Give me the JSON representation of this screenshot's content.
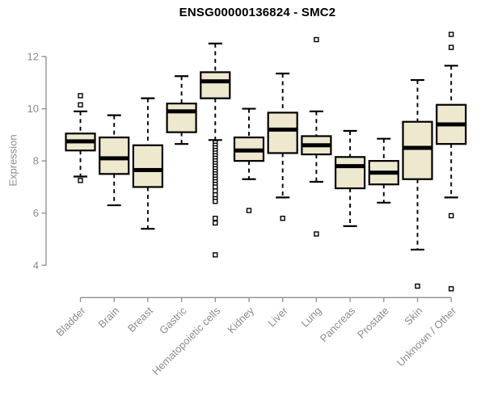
{
  "chart_data": {
    "type": "boxplot",
    "title": "ENSG00000136824 - SMC2",
    "ylabel": "Expression",
    "xlabel": "",
    "yticks": [
      4,
      6,
      8,
      10,
      12
    ],
    "ylim_axis": [
      4,
      12
    ],
    "grid": false,
    "legend": false,
    "categories": [
      "Bladder",
      "Brain",
      "Breast",
      "Gastric",
      "Hematopoietic cells",
      "Kidney",
      "Liver",
      "Lung",
      "Pancreas",
      "Prostate",
      "Skin",
      "Unknown / Other"
    ],
    "series": [
      {
        "name": "Bladder",
        "whisker_low": 7.4,
        "q1": 8.4,
        "median": 8.75,
        "q3": 9.05,
        "whisker_high": 9.9,
        "outliers": [
          10.5,
          10.15,
          7.25
        ]
      },
      {
        "name": "Brain",
        "whisker_low": 6.3,
        "q1": 7.5,
        "median": 8.1,
        "q3": 8.9,
        "whisker_high": 9.75,
        "outliers": []
      },
      {
        "name": "Breast",
        "whisker_low": 5.4,
        "q1": 7.0,
        "median": 7.65,
        "q3": 8.6,
        "whisker_high": 10.4,
        "outliers": []
      },
      {
        "name": "Gastric",
        "whisker_low": 8.65,
        "q1": 9.1,
        "median": 9.9,
        "q3": 10.2,
        "whisker_high": 11.25,
        "outliers": []
      },
      {
        "name": "Hematopoietic cells",
        "whisker_low": 8.8,
        "q1": 10.4,
        "median": 11.05,
        "q3": 11.4,
        "whisker_high": 12.5,
        "outliers": [
          8.7,
          8.6,
          8.5,
          8.4,
          8.3,
          8.2,
          8.1,
          8.0,
          7.9,
          7.8,
          7.7,
          7.6,
          7.5,
          7.4,
          7.3,
          7.2,
          7.1,
          7.0,
          6.85,
          6.7,
          6.55,
          6.45,
          5.8,
          5.62,
          4.4
        ]
      },
      {
        "name": "Kidney",
        "whisker_low": 7.3,
        "q1": 8.0,
        "median": 8.4,
        "q3": 8.9,
        "whisker_high": 10.0,
        "outliers": [
          6.1
        ]
      },
      {
        "name": "Liver",
        "whisker_low": 6.6,
        "q1": 8.3,
        "median": 9.2,
        "q3": 9.85,
        "whisker_high": 11.35,
        "outliers": [
          5.8
        ]
      },
      {
        "name": "Lung",
        "whisker_low": 7.2,
        "q1": 8.25,
        "median": 8.6,
        "q3": 8.95,
        "whisker_high": 9.9,
        "outliers": [
          12.65,
          5.2
        ]
      },
      {
        "name": "Pancreas",
        "whisker_low": 5.5,
        "q1": 6.95,
        "median": 7.8,
        "q3": 8.15,
        "whisker_high": 9.15,
        "outliers": []
      },
      {
        "name": "Prostate",
        "whisker_low": 6.4,
        "q1": 7.1,
        "median": 7.55,
        "q3": 8.0,
        "whisker_high": 8.85,
        "outliers": []
      },
      {
        "name": "Skin",
        "whisker_low": 4.6,
        "q1": 7.3,
        "median": 8.5,
        "q3": 9.5,
        "whisker_high": 11.1,
        "outliers": [
          3.2
        ]
      },
      {
        "name": "Unknown / Other",
        "whisker_low": 6.6,
        "q1": 8.65,
        "median": 9.4,
        "q3": 10.15,
        "whisker_high": 11.65,
        "outliers": [
          12.85,
          12.35,
          5.9,
          3.1
        ]
      }
    ]
  },
  "colors": {
    "background": "#FFFFFF",
    "box_fill": "#EDE8CE",
    "box_stroke": "#000000",
    "median": "#000000",
    "whisker": "#000000",
    "outlier_stroke": "#000000",
    "outlier_fill": "#FFFFFF",
    "axis": "#8C8C8C",
    "tick_label": "#8C8C8C",
    "title": "#000000"
  }
}
